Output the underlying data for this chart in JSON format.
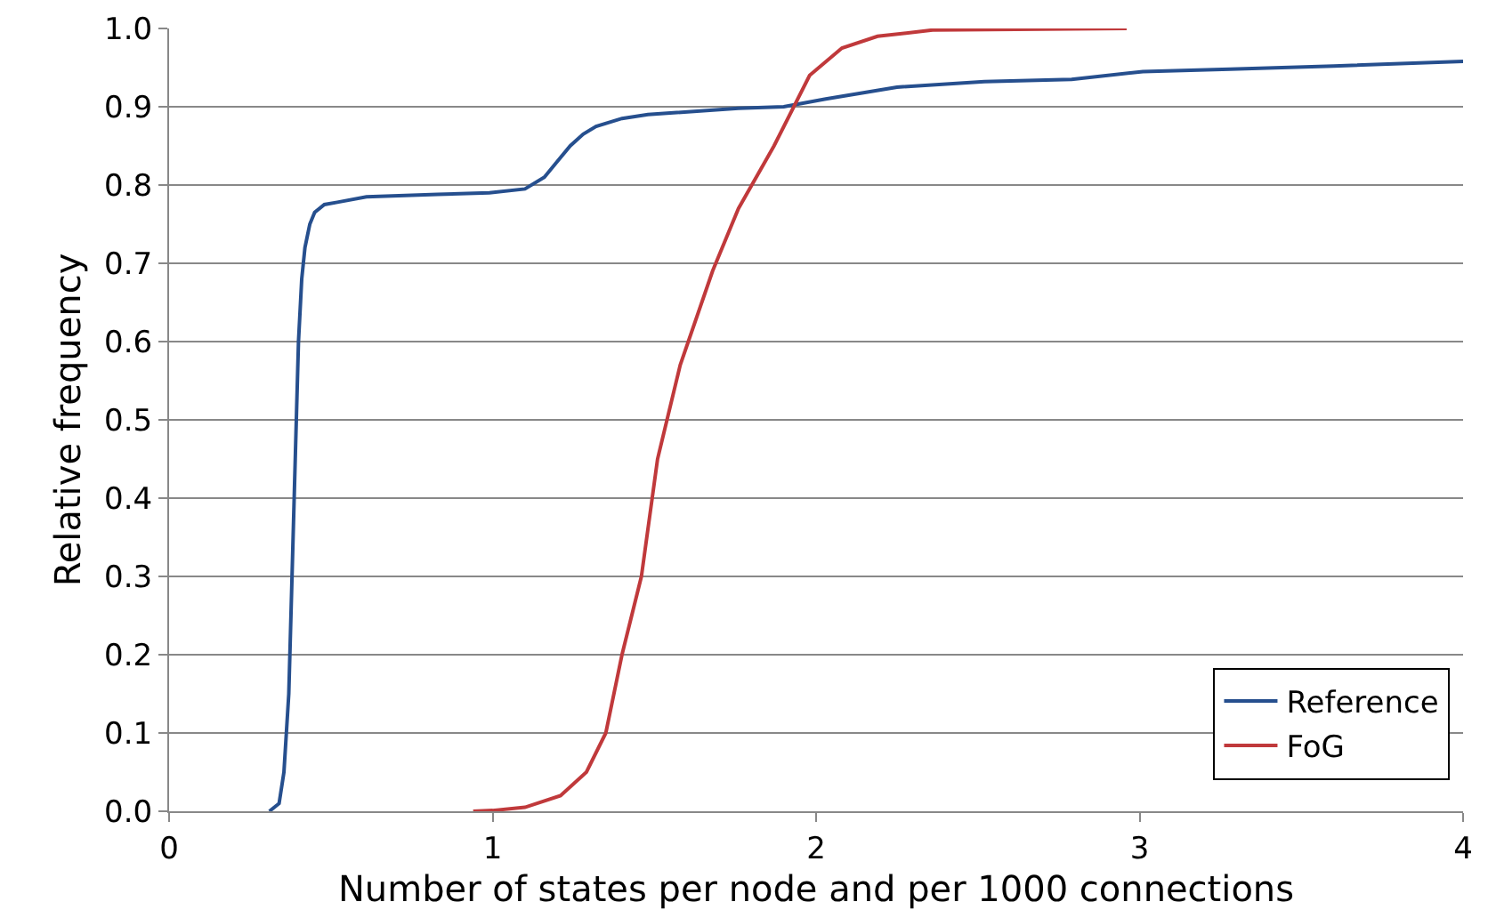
{
  "chart_data": {
    "type": "line",
    "xlabel": "Number of states per node and per 1000 connections",
    "ylabel": "Relative frequency",
    "xlim": [
      0,
      4
    ],
    "xticks": [
      0,
      1,
      2,
      3,
      4
    ],
    "ylim": [
      0,
      1
    ],
    "yticks": [
      {
        "value": 0,
        "label": "0.0"
      },
      {
        "value": 0.1,
        "label": "0.1"
      },
      {
        "value": 0.2,
        "label": "0.2"
      },
      {
        "value": 0.3,
        "label": "0.3"
      },
      {
        "value": 0.4,
        "label": "0.4"
      },
      {
        "value": 0.5,
        "label": "0.5"
      },
      {
        "value": 0.6,
        "label": "0.6"
      },
      {
        "value": 0.7,
        "label": "0.7"
      },
      {
        "value": 0.8,
        "label": "0.8"
      },
      {
        "value": 0.9,
        "label": "0.9"
      },
      {
        "value": 1,
        "label": "1.0"
      }
    ],
    "grid": "y",
    "legend": "bottom right",
    "marker": "none",
    "line_style": "solid",
    "series": [
      {
        "name": "Reference",
        "color": "#264f8e",
        "x": [
          0.31,
          0.34,
          0.355,
          0.37,
          0.38,
          0.39,
          0.4,
          0.41,
          0.42,
          0.435,
          0.45,
          0.48,
          0.52,
          0.61,
          0.83,
          0.99,
          1.1,
          1.16,
          1.2,
          1.24,
          1.28,
          1.32,
          1.4,
          1.48,
          1.76,
          1.9,
          2.03,
          2.25,
          2.52,
          2.79,
          3.01,
          3.28,
          3.6,
          4.0
        ],
        "values": [
          0,
          0.01,
          0.05,
          0.15,
          0.3,
          0.45,
          0.6,
          0.68,
          0.72,
          0.75,
          0.765,
          0.775,
          0.778,
          0.785,
          0.788,
          0.79,
          0.795,
          0.81,
          0.83,
          0.85,
          0.865,
          0.875,
          0.885,
          0.89,
          0.898,
          0.9,
          0.91,
          0.925,
          0.932,
          0.935,
          0.945,
          0.948,
          0.952,
          0.958
        ]
      },
      {
        "name": "FoG",
        "color": "#c0393b",
        "x": [
          0.94,
          1.0,
          1.1,
          1.21,
          1.29,
          1.35,
          1.4,
          1.46,
          1.51,
          1.58,
          1.68,
          1.76,
          1.87,
          1.98,
          2.08,
          2.19,
          2.36,
          2.96
        ],
        "values": [
          0,
          0.001,
          0.005,
          0.02,
          0.05,
          0.1,
          0.2,
          0.3,
          0.45,
          0.57,
          0.69,
          0.77,
          0.85,
          0.94,
          0.975,
          0.99,
          0.998,
          1.0
        ]
      }
    ]
  }
}
